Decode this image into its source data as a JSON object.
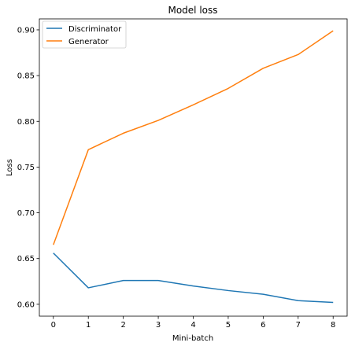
{
  "chart_data": {
    "type": "line",
    "title": "Model loss",
    "xlabel": "Mini-batch",
    "ylabel": "Loss",
    "x": [
      0,
      1,
      2,
      3,
      4,
      5,
      6,
      7,
      8
    ],
    "xlim": [
      -0.4,
      8.4
    ],
    "ylim": [
      0.587,
      0.912
    ],
    "x_ticks": [
      "0",
      "1",
      "2",
      "3",
      "4",
      "5",
      "6",
      "7",
      "8"
    ],
    "y_ticks": [
      "0.60",
      "0.65",
      "0.70",
      "0.75",
      "0.80",
      "0.85",
      "0.90"
    ],
    "grid": false,
    "legend_position": "top-left",
    "series": [
      {
        "name": "Discriminator",
        "color": "#1f77b4",
        "values": [
          0.656,
          0.618,
          0.626,
          0.626,
          0.62,
          0.615,
          0.611,
          0.604,
          0.602
        ]
      },
      {
        "name": "Generator",
        "color": "#ff7f0e",
        "values": [
          0.665,
          0.769,
          0.787,
          0.801,
          0.818,
          0.836,
          0.858,
          0.873,
          0.899
        ]
      }
    ]
  }
}
